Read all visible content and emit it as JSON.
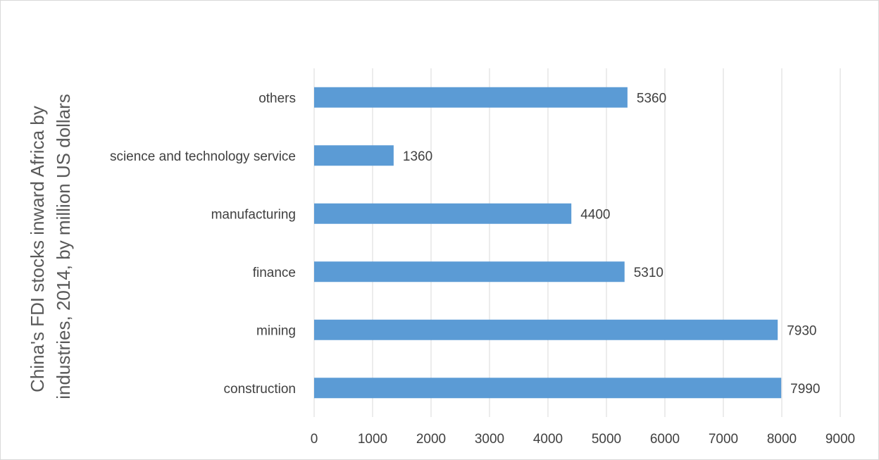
{
  "chart_data": {
    "type": "bar",
    "orientation": "horizontal",
    "categories": [
      "construction",
      "mining",
      "finance",
      "manufacturing",
      "science and technology service",
      "others"
    ],
    "values": [
      7990,
      7930,
      5310,
      4400,
      1360,
      5360
    ],
    "data_labels": [
      "7990",
      "7930",
      "5310",
      "4400",
      "1360",
      "5360"
    ],
    "title": "",
    "xlabel": "",
    "ylabel_lines": [
      "China's FDI stocks inward Africa by",
      "industries, 2014, by million US dollars"
    ],
    "xlim": [
      0,
      9000
    ],
    "x_ticks": [
      0,
      1000,
      2000,
      3000,
      4000,
      5000,
      6000,
      7000,
      8000,
      9000
    ],
    "x_tick_labels": [
      "0",
      "1000",
      "2000",
      "3000",
      "4000",
      "5000",
      "6000",
      "7000",
      "8000",
      "9000"
    ],
    "grid": "vertical",
    "legend": "none",
    "colors": {
      "bar": "#5B9BD5",
      "grid": "#d9d9d9",
      "text": "#404040",
      "axis_title": "#595959"
    }
  }
}
